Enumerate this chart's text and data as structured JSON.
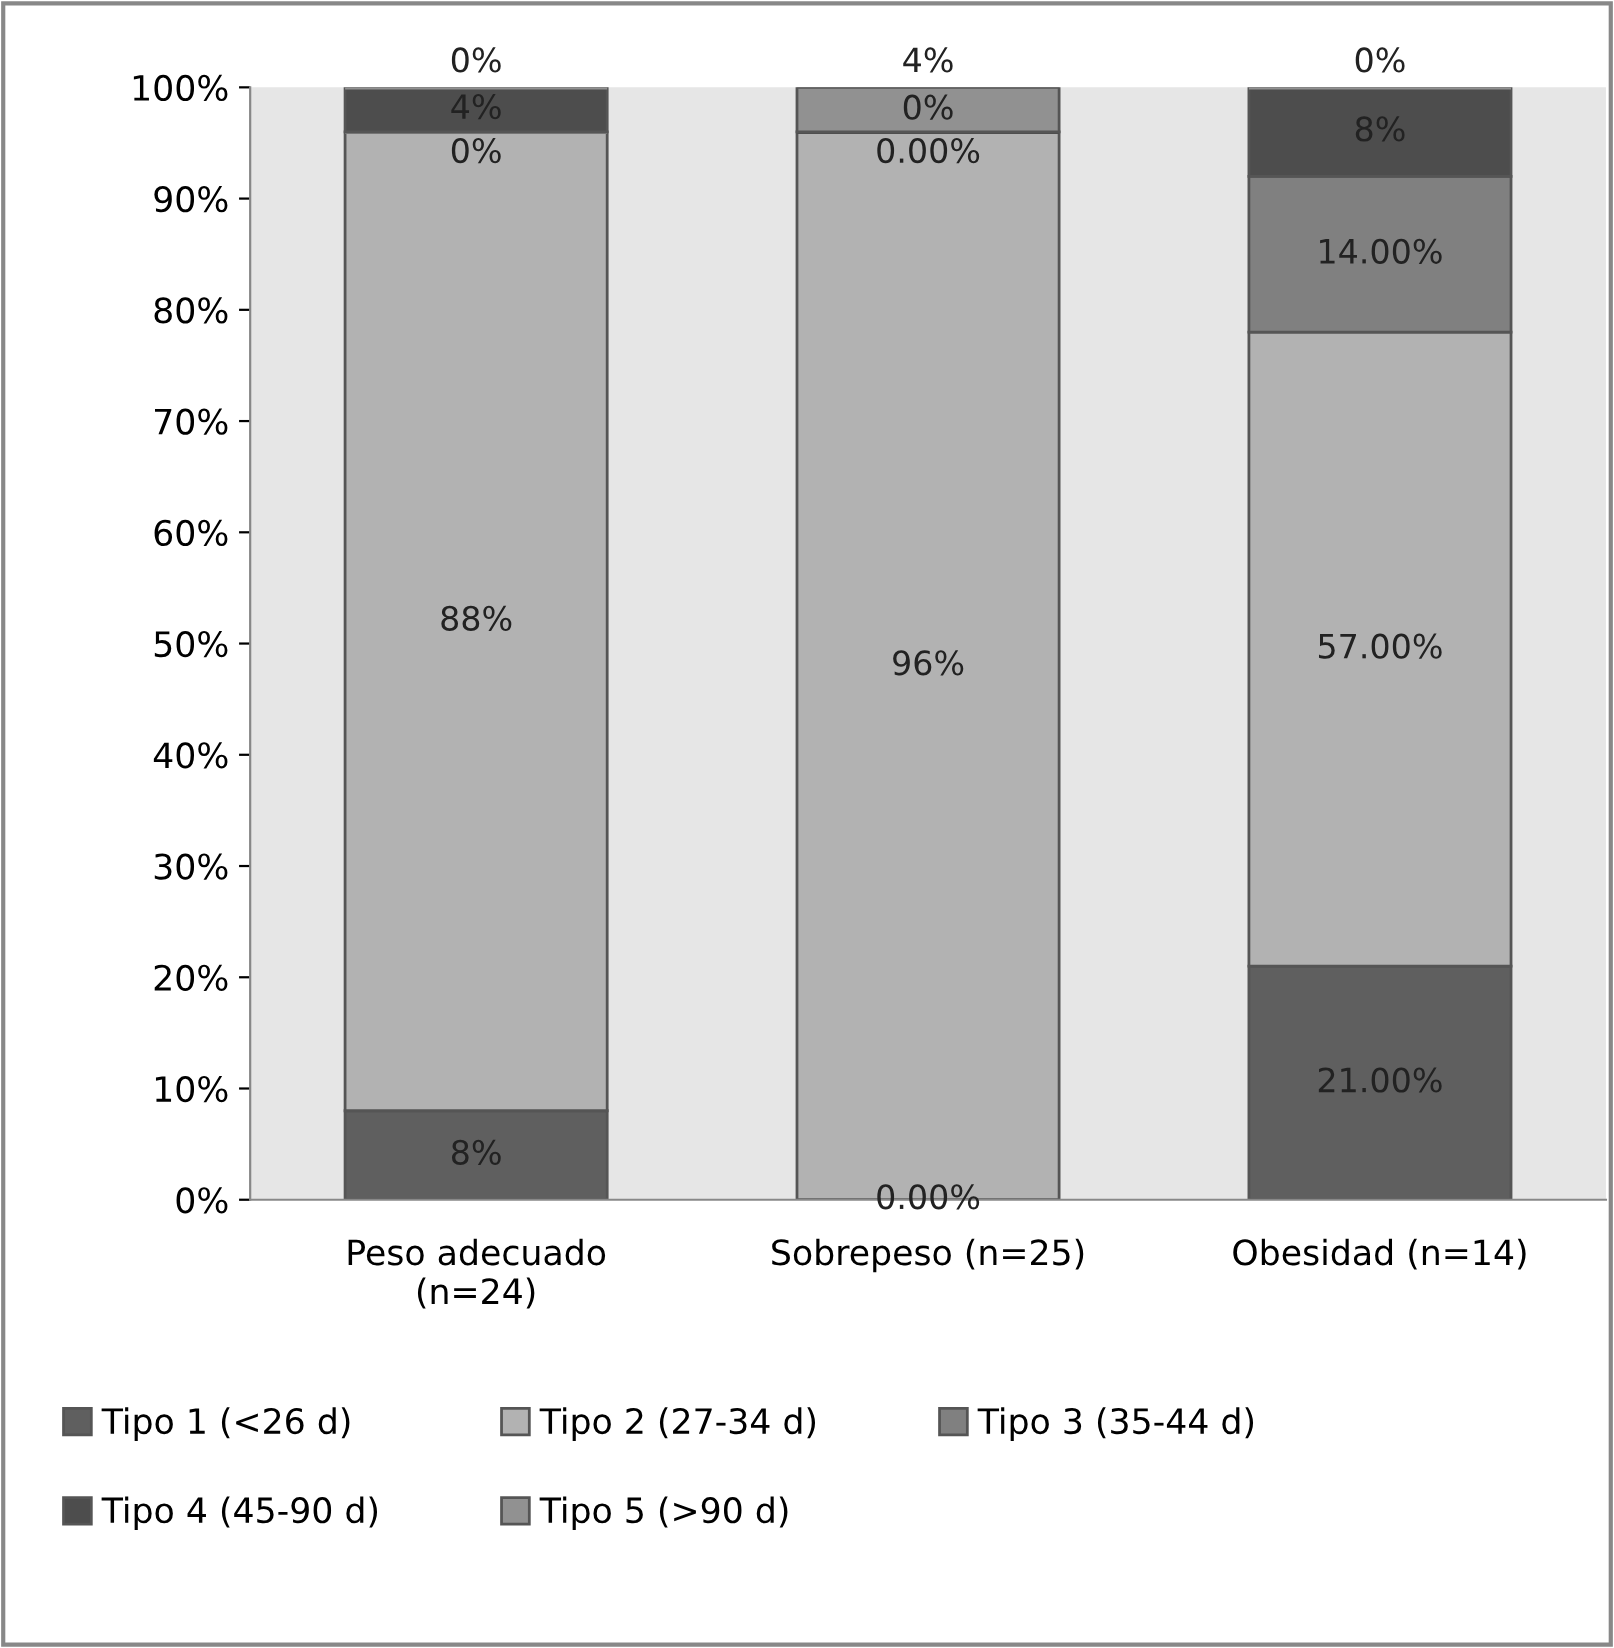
{
  "chart_data": {
    "type": "bar",
    "stacked": true,
    "categories": [
      "Peso adecuado\n(n=24)",
      "Sobrepeso (n=25)",
      "Obesidad (n=14)"
    ],
    "series": [
      {
        "name": "Tipo 1 (<26 d)",
        "color": "#5f5f5f",
        "values": [
          8,
          0,
          21
        ],
        "value_labels": [
          "8%",
          "0.00%",
          "21.00%"
        ]
      },
      {
        "name": "Tipo 2 (27-34 d)",
        "color": "#b2b2b2",
        "values": [
          88,
          96,
          57
        ],
        "value_labels": [
          "88%",
          "96%",
          "57.00%"
        ]
      },
      {
        "name": "Tipo 3 (35-44 d)",
        "color": "#808080",
        "values": [
          0,
          0,
          14
        ],
        "value_labels": [
          "0%",
          "0.00%",
          "14.00%"
        ]
      },
      {
        "name": "Tipo 4 (45-90 d)",
        "color": "#4d4d4d",
        "values": [
          4,
          0,
          8
        ],
        "value_labels": [
          "4%",
          "0%",
          "8%"
        ]
      },
      {
        "name": "Tipo 5 (>90 d)",
        "color": "#919191",
        "values": [
          0,
          4,
          0
        ],
        "value_labels": [
          "0%",
          "4%",
          "0%"
        ]
      }
    ],
    "ylim": [
      0,
      100
    ],
    "yticks": [
      {
        "value": 0,
        "label": "0%"
      },
      {
        "value": 10,
        "label": "10%"
      },
      {
        "value": 20,
        "label": "20%"
      },
      {
        "value": 30,
        "label": "30%"
      },
      {
        "value": 40,
        "label": "40%"
      },
      {
        "value": 50,
        "label": "50%"
      },
      {
        "value": 60,
        "label": "60%"
      },
      {
        "value": 70,
        "label": "70%"
      },
      {
        "value": 80,
        "label": "80%"
      },
      {
        "value": 90,
        "label": "90%"
      },
      {
        "value": 100,
        "label": "100%"
      }
    ],
    "grid": false,
    "legend": "bottom"
  }
}
